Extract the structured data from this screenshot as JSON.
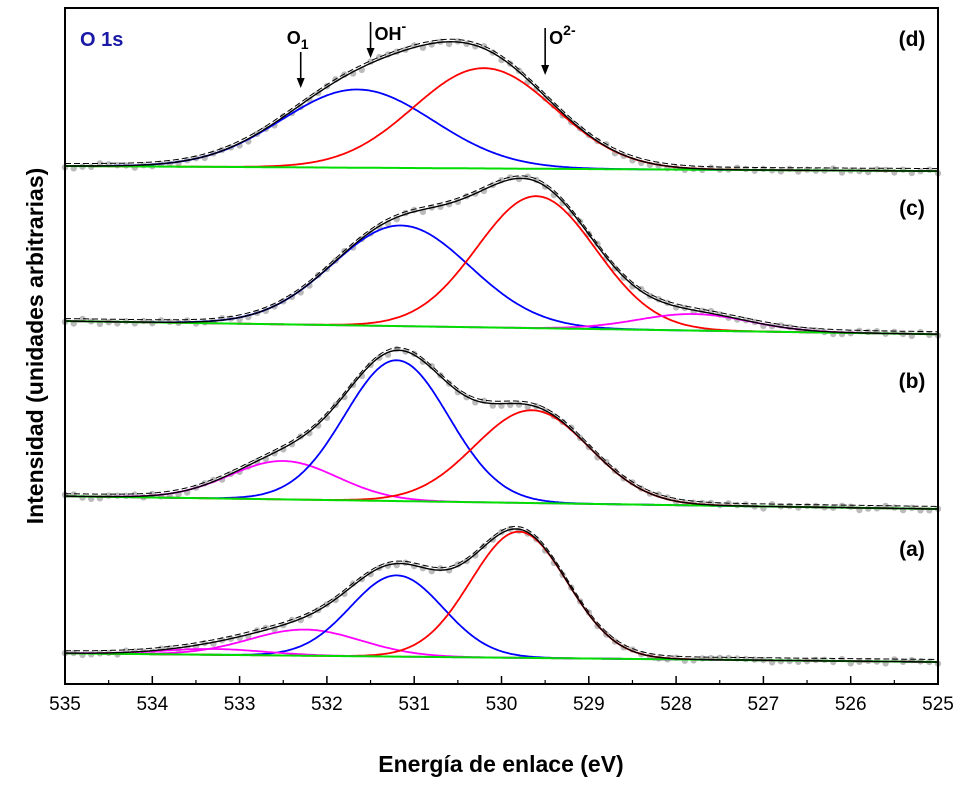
{
  "chart_data": {
    "type": "line",
    "title": "O 1s",
    "title_color": "#1a1aa6",
    "xlabel": "Energía de enlace (eV)",
    "ylabel": "Intensidad (unidades arbitrarias)",
    "xlim": [
      535,
      525
    ],
    "x_reversed": true,
    "x_ticks": [
      "535",
      "534",
      "533",
      "532",
      "531",
      "530",
      "529",
      "528",
      "527",
      "526",
      "525"
    ],
    "y_ticks": false,
    "grid": false,
    "peak_markers": [
      {
        "label": "O",
        "sub": "1",
        "sup": "",
        "x": 532.3
      },
      {
        "label": "OH",
        "sub": "",
        "sup": "-",
        "x": 531.5
      },
      {
        "label": "O",
        "sub": "",
        "sup": "2-",
        "x": 529.5
      }
    ],
    "colors": {
      "data": "#b4b4b4",
      "envelope": "#000000",
      "O1": "#ff00ff",
      "OH": "#0000ff",
      "O2": "#ff0000",
      "extra": "#ff00ff",
      "background": "#00dd00"
    },
    "panels": [
      {
        "label": "(a)",
        "baseline_start": 0.06,
        "baseline_end": 0.0,
        "components": [
          {
            "name": "O1",
            "center": 532.25,
            "height": 0.18,
            "fwhm": 1.5
          },
          {
            "name": "OH",
            "center": 531.2,
            "height": 0.56,
            "fwhm": 1.25
          },
          {
            "name": "O2",
            "center": 529.8,
            "height": 0.87,
            "fwhm": 1.3
          },
          {
            "name": "extra",
            "center": 533.3,
            "height": 0.04,
            "fwhm": 1.4
          }
        ]
      },
      {
        "label": "(b)",
        "baseline_start": 0.03,
        "baseline_end": -0.05,
        "components": [
          {
            "name": "O1",
            "center": 532.5,
            "height": 0.24,
            "fwhm": 1.45
          },
          {
            "name": "OH",
            "center": 531.2,
            "height": 0.88,
            "fwhm": 1.4
          },
          {
            "name": "O2",
            "center": 529.65,
            "height": 0.58,
            "fwhm": 1.55
          }
        ]
      },
      {
        "label": "(c)",
        "baseline_start": 0.03,
        "baseline_end": -0.05,
        "components": [
          {
            "name": "OH",
            "center": 531.15,
            "height": 0.61,
            "fwhm": 1.85
          },
          {
            "name": "O2",
            "center": 529.6,
            "height": 0.8,
            "fwhm": 1.6
          },
          {
            "name": "extra",
            "center": 527.8,
            "height": 0.1,
            "fwhm": 1.5
          }
        ]
      },
      {
        "label": "(d)",
        "baseline_start": 0.0,
        "baseline_end": -0.03,
        "components": [
          {
            "name": "OH",
            "center": 531.65,
            "height": 0.46,
            "fwhm": 2.05
          },
          {
            "name": "O2",
            "center": 530.2,
            "height": 0.59,
            "fwhm": 1.9
          }
        ]
      }
    ]
  }
}
